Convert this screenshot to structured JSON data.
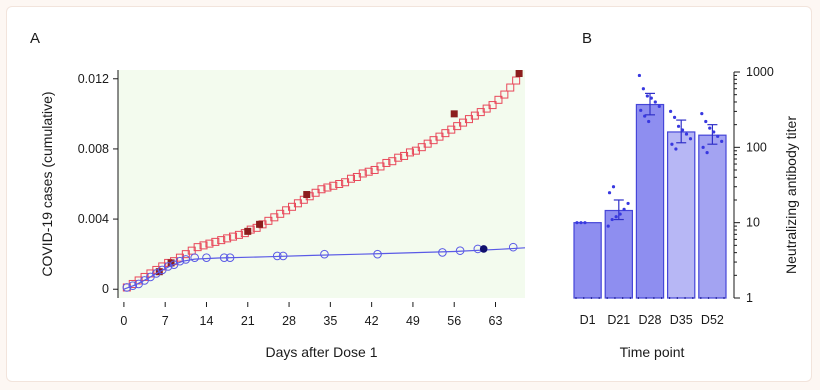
{
  "chart_data": [
    {
      "panel_label": "A",
      "type": "scatter",
      "xlabel": "Days after Dose 1",
      "ylabel": "COVID-19 cases (cumulative)",
      "xlim": [
        -1,
        68
      ],
      "ylim": [
        -0.0005,
        0.0125
      ],
      "x_ticks": [
        0,
        7,
        14,
        21,
        28,
        35,
        42,
        49,
        56,
        63
      ],
      "y_ticks": [
        0,
        0.004,
        0.008,
        0.012
      ],
      "y_tick_labels": [
        "0",
        "0.004",
        "0.008",
        "0.012"
      ],
      "background_color": "#f3fbee",
      "series": [
        {
          "color": "#e8485a",
          "marker": "square",
          "x": [
            0.5,
            1.5,
            2.5,
            3.5,
            4.5,
            5.5,
            6.5,
            7.5,
            8.5,
            9.5,
            10.5,
            11.5,
            12.5,
            13.5,
            14.5,
            15.5,
            16.5,
            17.5,
            18.5,
            19.5,
            20.5,
            21.5,
            22.5,
            23.5,
            24.5,
            25.5,
            26.5,
            27.5,
            28.5,
            29.5,
            30.5,
            31.5,
            32.5,
            33.5,
            34.5,
            35.5,
            36.5,
            37.5,
            38.5,
            39.5,
            40.5,
            41.5,
            42.5,
            43.5,
            44.5,
            45.5,
            46.5,
            47.5,
            48.5,
            49.5,
            50.5,
            51.5,
            52.5,
            53.5,
            54.5,
            55.5,
            56.5,
            57.5,
            58.5,
            59.5,
            60.5,
            61.5,
            62.5,
            63.5,
            64.5,
            65.5,
            66.5
          ],
          "y": [
            0.0001,
            0.0003,
            0.0005,
            0.0007,
            0.0009,
            0.0011,
            0.0013,
            0.0015,
            0.0016,
            0.0018,
            0.002,
            0.0022,
            0.0024,
            0.0025,
            0.0026,
            0.0027,
            0.0028,
            0.0029,
            0.003,
            0.0031,
            0.0032,
            0.0034,
            0.0035,
            0.0037,
            0.0039,
            0.0041,
            0.0043,
            0.0045,
            0.0047,
            0.0049,
            0.0051,
            0.0053,
            0.0055,
            0.0057,
            0.0058,
            0.0059,
            0.006,
            0.0061,
            0.0063,
            0.0064,
            0.0066,
            0.0067,
            0.0068,
            0.007,
            0.0072,
            0.0073,
            0.0075,
            0.0076,
            0.0078,
            0.0079,
            0.0081,
            0.0083,
            0.0085,
            0.0087,
            0.0089,
            0.0091,
            0.0093,
            0.0095,
            0.0097,
            0.0099,
            0.0101,
            0.0103,
            0.0105,
            0.0108,
            0.0111,
            0.0115,
            0.0119
          ],
          "highlighted_x": [
            6,
            8,
            21,
            23,
            31,
            56,
            67
          ],
          "highlighted_y": [
            0.001,
            0.0015,
            0.0033,
            0.0037,
            0.0054,
            0.01,
            0.0123
          ],
          "highlight_color": "#8c1d1d"
        },
        {
          "color": "#5a5ae6",
          "marker": "circle",
          "x": [
            0.5,
            1.5,
            2.5,
            3.5,
            4.5,
            5.5,
            6.5,
            7.5,
            8.5,
            9.5,
            10.5,
            12,
            14,
            17,
            18,
            26,
            27,
            34,
            43,
            54,
            57,
            60,
            66
          ],
          "y": [
            0.0001,
            0.0002,
            0.0003,
            0.0005,
            0.0007,
            0.0009,
            0.0011,
            0.0013,
            0.0014,
            0.0016,
            0.0017,
            0.0018,
            0.0018,
            0.0018,
            0.0018,
            0.0019,
            0.0019,
            0.002,
            0.002,
            0.0021,
            0.0022,
            0.0023,
            0.0024
          ],
          "highlighted_x": [
            61
          ],
          "highlighted_y": [
            0.0023
          ],
          "highlight_color": "#10106e",
          "fit_line_x": [
            0,
            2,
            4,
            6,
            8,
            10,
            12,
            16,
            24,
            32,
            40,
            48,
            56,
            64,
            68
          ],
          "fit_line_y": [
            0,
            0.00025,
            0.0006,
            0.001,
            0.00135,
            0.0016,
            0.00172,
            0.00178,
            0.00185,
            0.00193,
            0.002,
            0.00207,
            0.00215,
            0.00228,
            0.00236
          ]
        }
      ]
    },
    {
      "panel_label": "B",
      "type": "bar",
      "xlabel": "Time point",
      "ylabel": "Neutralizing antibody titer",
      "y_scale": "log",
      "ylim": [
        1,
        1000
      ],
      "y_ticks": [
        1,
        10,
        100,
        1000
      ],
      "y_tick_labels": [
        "1",
        "10",
        "100",
        "1000"
      ],
      "categories": [
        "D1",
        "D21",
        "D28",
        "D35",
        "D52"
      ],
      "values": [
        10,
        14.5,
        370,
        160,
        145
      ],
      "error_low": [
        10,
        11,
        270,
        115,
        110
      ],
      "error_high": [
        10,
        20,
        520,
        230,
        200
      ],
      "bar_fills": [
        "#8e8ef0",
        "#8e8ef0",
        "#8e8ef0",
        "#b7b7f5",
        "#a3a3f2"
      ],
      "points": [
        [
          10,
          10,
          10
        ],
        [
          9,
          11,
          12,
          13,
          15,
          18,
          25,
          30
        ],
        [
          900,
          600,
          480,
          450,
          400,
          350,
          310,
          260,
          220
        ],
        [
          300,
          250,
          190,
          170,
          150,
          130,
          110,
          95
        ],
        [
          280,
          220,
          180,
          160,
          140,
          120,
          100,
          85
        ]
      ],
      "point_color": "#3838e0"
    }
  ]
}
